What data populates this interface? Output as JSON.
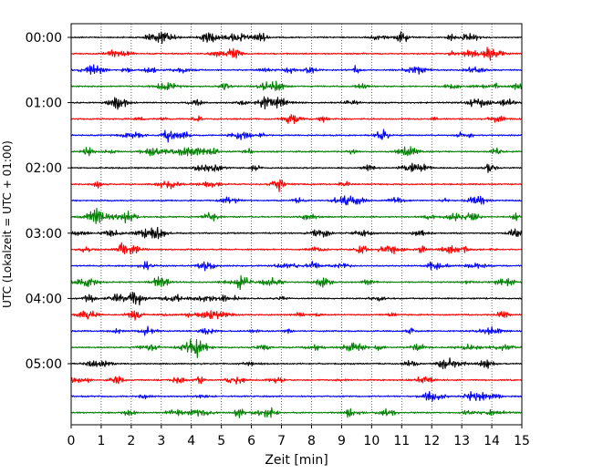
{
  "chart_data": {
    "type": "line",
    "title": "",
    "xlabel": "Zeit  [min]",
    "ylabel": "UTC (Lokalzeit = UTC + 01:00)",
    "xlim": [
      0,
      15
    ],
    "x_ticks": [
      "0",
      "1",
      "2",
      "3",
      "4",
      "5",
      "6",
      "7",
      "8",
      "9",
      "10",
      "11",
      "12",
      "13",
      "14",
      "15"
    ],
    "y_ticks": [
      "00:00",
      "01:00",
      "02:00",
      "03:00",
      "04:00",
      "05:00"
    ],
    "trace_interval_min": 15,
    "trace_count": 24,
    "trace_colors": [
      "#000000",
      "#ff0000",
      "#0000ff",
      "#008000"
    ],
    "vertical_grid": "dotted, every minute",
    "legend": "none"
  }
}
